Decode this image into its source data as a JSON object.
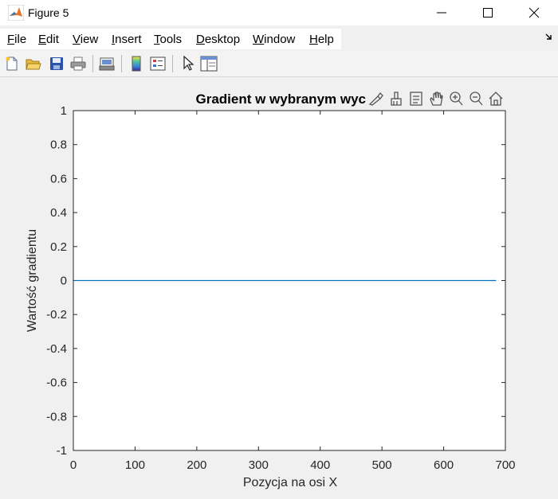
{
  "window": {
    "title": "Figure 5",
    "app_icon": "matlab-logo-icon",
    "controls": [
      "minimize-icon",
      "maximize-icon",
      "close-icon"
    ]
  },
  "menu": {
    "items": [
      {
        "first": "F",
        "rest": "ile"
      },
      {
        "first": "E",
        "rest": "dit"
      },
      {
        "first": "V",
        "rest": "iew"
      },
      {
        "first": "I",
        "rest": "nsert"
      },
      {
        "first": "T",
        "rest": "ools"
      },
      {
        "first": "D",
        "rest": "esktop"
      },
      {
        "first": "W",
        "rest": "indow"
      },
      {
        "first": "H",
        "rest": "elp"
      }
    ],
    "overflow_icon": "dock-arrow-icon"
  },
  "toolbar": {
    "icons": [
      "new-figure-icon",
      "open-file-icon",
      "save-icon",
      "print-icon",
      "link-plot-icon",
      "insert-colorbar-icon",
      "insert-legend-icon",
      "edit-plot-pointer-icon",
      "property-inspector-icon"
    ]
  },
  "axes_toolbar": {
    "icons": [
      "brush-edit-icon",
      "data-brush-icon",
      "data-tips-icon",
      "pan-hand-icon",
      "zoom-in-icon",
      "zoom-out-icon",
      "home-restore-icon"
    ]
  },
  "chart_data": {
    "type": "line",
    "title": "Gradient w wybranym wyc",
    "xlabel": "Pozycja na osi X",
    "ylabel": "Wartość gradientu",
    "xlim": [
      0,
      700
    ],
    "ylim": [
      -1,
      1
    ],
    "xticks": [
      "0",
      "100",
      "200",
      "300",
      "400",
      "500",
      "600",
      "700"
    ],
    "yticks": [
      "1",
      "0.8",
      "0.6",
      "0.4",
      "0.2",
      "0",
      "-0.2",
      "-0.4",
      "-0.6",
      "-0.8",
      "-1"
    ],
    "grid": false,
    "series": [
      {
        "color": "#0072bd",
        "x": [
          1,
          685
        ],
        "y": [
          0,
          0
        ]
      }
    ]
  }
}
